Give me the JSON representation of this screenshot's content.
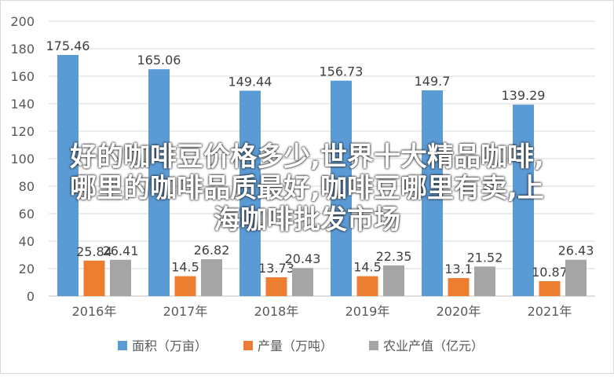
{
  "chart_data": {
    "type": "bar",
    "categories": [
      "2016年",
      "2017年",
      "2018年",
      "2019年",
      "2020年",
      "2021年"
    ],
    "series": [
      {
        "name": "面积（万亩）",
        "color": "#5B9BD5",
        "values": [
          175.46,
          165.06,
          149.44,
          156.73,
          149.7,
          139.29
        ],
        "labels": [
          "175.46",
          "165.06",
          "149.44",
          "156.73",
          "149.7",
          "139.29"
        ]
      },
      {
        "name": "产量（万吨）",
        "color": "#ED7D31",
        "values": [
          25.84,
          14.5,
          13.73,
          14.5,
          13.1,
          10.87
        ],
        "labels": [
          "25.84",
          "14.5",
          "13.73",
          "14.5",
          "13.1",
          "10.87"
        ]
      },
      {
        "name": "农业产值（亿元）",
        "color": "#A5A5A5",
        "values": [
          26.41,
          26.82,
          20.43,
          22.35,
          21.52,
          26.43
        ],
        "labels": [
          "26.41",
          "26.82",
          "20.43",
          "22.35",
          "21.52",
          "26.43"
        ]
      }
    ],
    "ylim": [
      0,
      200
    ],
    "yticks": [
      "0",
      "20",
      "40",
      "60",
      "80",
      "100",
      "120",
      "140",
      "160",
      "180",
      "200"
    ],
    "grid": true,
    "legend": "bottom"
  },
  "overlay_text": {
    "line1": "好的咖啡豆价格多少,世界十大精品咖啡,",
    "line2": "哪里的咖啡品质最好,咖啡豆哪里有卖,上",
    "line3": "海咖啡批发市场"
  }
}
